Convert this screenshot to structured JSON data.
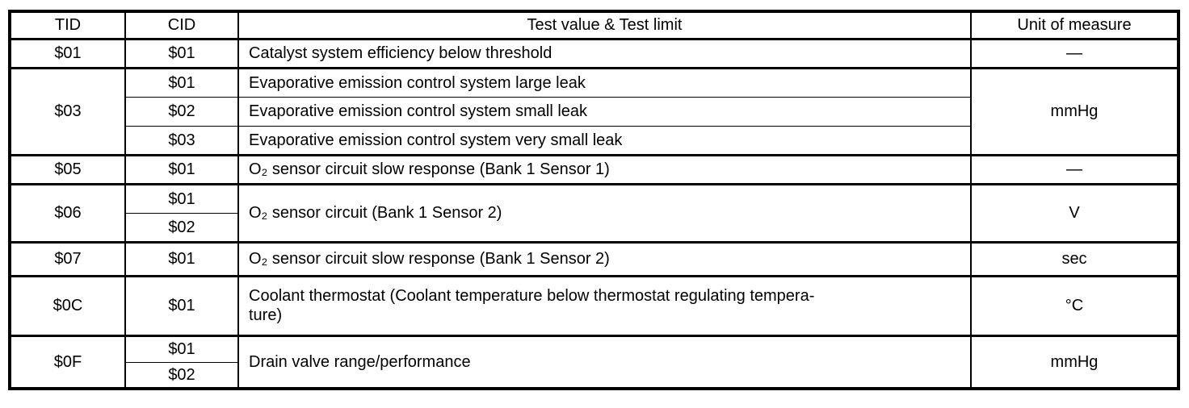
{
  "page": {
    "background": "#ffffff",
    "text_color": "#000000",
    "border_color": "#000000"
  },
  "table": {
    "headers": {
      "tid": "TID",
      "cid": "CID",
      "test": "Test value & Test limit",
      "unit": "Unit of measure"
    },
    "groups": [
      {
        "tid": "$01",
        "entries": [
          {
            "cid": "$01",
            "text": "Catalyst system efficiency below threshold"
          }
        ],
        "unit": "—"
      },
      {
        "tid": "$03",
        "entries": [
          {
            "cid": "$01",
            "text": "Evaporative emission control system large leak"
          },
          {
            "cid": "$02",
            "text": "Evaporative emission control system small leak"
          },
          {
            "cid": "$03",
            "text": "Evaporative emission control system very small leak"
          }
        ],
        "unit": "mmHg"
      },
      {
        "tid": "$05",
        "entries": [
          {
            "cid": "$01",
            "text": "O₂ sensor circuit slow response (Bank 1 Sensor 1)"
          }
        ],
        "unit": "—"
      },
      {
        "tid": "$06",
        "cids": [
          "$01",
          "$02"
        ],
        "shared_text": "O₂ sensor circuit (Bank 1 Sensor 2)",
        "unit": "V"
      },
      {
        "tid": "$07",
        "entries": [
          {
            "cid": "$01",
            "text": "O₂ sensor circuit slow response (Bank 1 Sensor 2)"
          }
        ],
        "unit": "sec"
      },
      {
        "tid": "$0C",
        "entries": [
          {
            "cid": "$01",
            "text": "Coolant thermostat (Coolant temperature below thermostat regulating tempera-\nture)"
          }
        ],
        "unit": "°C"
      },
      {
        "tid": "$0F",
        "cids": [
          "$01",
          "$02"
        ],
        "shared_text": "Drain valve range/performance",
        "unit": "mmHg"
      }
    ]
  }
}
